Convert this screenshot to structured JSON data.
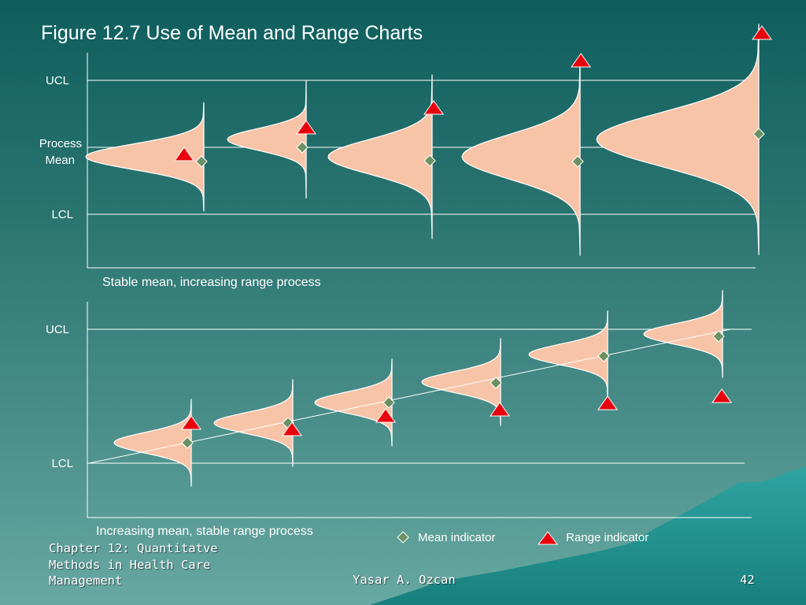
{
  "slide": {
    "title": "Figure 12.7 Use of Mean and Range Charts",
    "footer_left": "Chapter 12: Quantitatve Methods in Health Care Management",
    "footer_author": "Yasar A. Ozcan",
    "page_number": "42"
  },
  "colors": {
    "distribution_fill": "#f7c4a8",
    "mean_marker": "#6b9163",
    "range_marker": "#e8000c",
    "lines": "#ffffff"
  },
  "top_panel": {
    "ucl_label": "UCL",
    "mean_label_line1": "Process",
    "mean_label_line2": "Mean",
    "lcl_label": "LCL",
    "caption": "Stable mean, increasing range process"
  },
  "bottom_panel": {
    "ucl_label": "UCL",
    "lcl_label": "LCL",
    "caption": "Increasing mean, stable range process"
  },
  "legend": {
    "mean_label": "Mean indicator",
    "range_label": "Range indicator"
  }
}
